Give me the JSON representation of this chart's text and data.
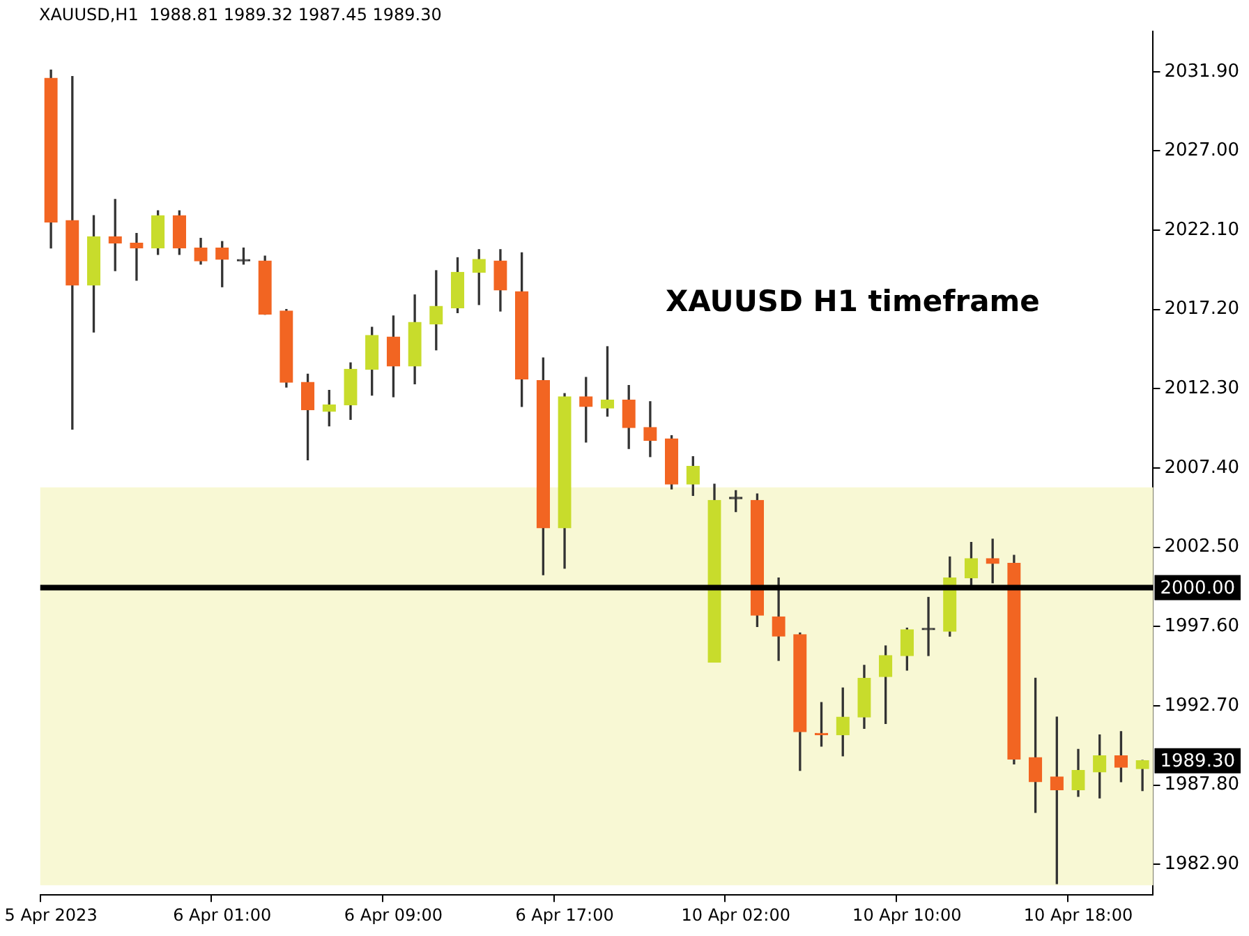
{
  "chart_data": {
    "type": "candlestick",
    "title": "XAUUSD,H1  1988.81 1989.32 1987.45 1989.30",
    "annotations": [
      "XAUUSD H1 timeframe",
      "1989.30"
    ],
    "categories": [
      "5 Apr 2023",
      null,
      null,
      null,
      null,
      null,
      null,
      null,
      "6 Apr 01:00",
      null,
      null,
      null,
      null,
      null,
      null,
      null,
      "6 Apr 09:00",
      null,
      null,
      null,
      null,
      null,
      null,
      null,
      "6 Apr 17:00",
      null,
      null,
      null,
      null,
      null,
      null,
      null,
      "10 Apr 02:00",
      null,
      null,
      null,
      null,
      null,
      null,
      null,
      "10 Apr 10:00",
      null,
      null,
      null,
      null,
      null,
      null,
      null,
      "10 Apr 18:00",
      null,
      null,
      null
    ],
    "ohlc": [
      [
        2031.5,
        2032.0,
        2021.0,
        2022.6
      ],
      [
        2022.7,
        2031.6,
        2009.8,
        2018.7
      ],
      [
        2018.7,
        2023.0,
        2015.8,
        2021.7
      ],
      [
        2021.7,
        2024.0,
        2019.6,
        2021.3
      ],
      [
        2021.3,
        2021.9,
        2019.0,
        2021.0
      ],
      [
        2021.0,
        2023.3,
        2020.6,
        2023.0
      ],
      [
        2023.0,
        2023.3,
        2020.6,
        2021.0
      ],
      [
        2021.0,
        2021.6,
        2020.0,
        2020.2
      ],
      [
        2021.0,
        2021.4,
        2018.6,
        2020.3
      ],
      [
        2020.2,
        2021.0,
        2020.0,
        2020.2
      ],
      [
        2020.2,
        2020.5,
        2016.9,
        2016.9
      ],
      [
        2017.1,
        2017.2,
        2012.4,
        2012.7
      ],
      [
        2012.7,
        2013.2,
        2007.9,
        2011.0
      ],
      [
        2010.9,
        2012.2,
        2010.0,
        2011.3
      ],
      [
        2011.3,
        2013.9,
        2010.4,
        2013.5
      ],
      [
        2013.5,
        2016.1,
        2011.9,
        2015.6
      ],
      [
        2015.5,
        2016.8,
        2011.8,
        2013.7
      ],
      [
        2013.7,
        2018.1,
        2012.6,
        2016.4
      ],
      [
        2016.3,
        2019.6,
        2014.7,
        2017.4
      ],
      [
        2017.3,
        2020.4,
        2017.0,
        2019.5
      ],
      [
        2019.5,
        2020.9,
        2017.5,
        2020.3
      ],
      [
        2020.2,
        2020.9,
        2017.1,
        2018.4
      ],
      [
        2018.3,
        2020.7,
        2011.2,
        2012.9
      ],
      [
        2012.8,
        2014.2,
        2000.8,
        2003.7
      ],
      [
        2003.7,
        2012.0,
        2001.2,
        2011.8
      ],
      [
        2011.8,
        2013.0,
        2009.0,
        2011.2
      ],
      [
        2011.1,
        2014.9,
        2010.6,
        2011.6
      ],
      [
        2011.6,
        2012.5,
        2008.6,
        2009.9
      ],
      [
        2009.9,
        2011.5,
        2008.1,
        2009.1
      ],
      [
        2009.2,
        2009.4,
        2006.1,
        2006.4
      ],
      [
        2006.4,
        2008.1,
        2005.7,
        2007.5
      ],
      [
        1995.4,
        2006.4,
        1995.4,
        2005.4
      ],
      [
        2005.5,
        2006.0,
        2004.7,
        2005.5
      ],
      [
        2005.4,
        2005.8,
        1997.6,
        1998.3
      ],
      [
        1998.2,
        2000.6,
        1995.5,
        1997.0
      ],
      [
        1997.1,
        1997.2,
        1988.7,
        1991.1
      ],
      [
        1991.0,
        1992.9,
        1990.2,
        1990.9
      ],
      [
        1990.9,
        1993.8,
        1989.6,
        1992.0
      ],
      [
        1992.0,
        1995.2,
        1991.3,
        1994.4
      ],
      [
        1994.5,
        1996.4,
        1991.6,
        1995.8
      ],
      [
        1995.8,
        1997.5,
        1994.9,
        1997.4
      ],
      [
        1997.4,
        1999.4,
        1995.8,
        1997.4
      ],
      [
        1997.3,
        2001.9,
        1997.0,
        2000.6
      ],
      [
        2000.6,
        2002.8,
        1999.9,
        2001.8
      ],
      [
        2001.8,
        2003.0,
        2000.3,
        2001.5
      ],
      [
        2001.5,
        2002.0,
        1989.1,
        1989.4
      ],
      [
        1989.5,
        1994.4,
        1986.1,
        1988.0
      ],
      [
        1988.3,
        1992.0,
        1981.7,
        1987.5
      ],
      [
        1987.5,
        1990.0,
        1987.1,
        1988.7
      ],
      [
        1988.6,
        1990.9,
        1987.0,
        1989.6
      ],
      [
        1989.6,
        1991.1,
        1988.0,
        1988.9
      ],
      [
        1988.81,
        1989.32,
        1987.45,
        1989.3
      ]
    ],
    "colors": [
      "#f26522",
      "#f26522",
      "#c8dc2c",
      "#f26522",
      "#f26522",
      "#c8dc2c",
      "#f26522",
      "#f26522",
      "#f26522",
      "#333333",
      "#f26522",
      "#f26522",
      "#f26522",
      "#c8dc2c",
      "#c8dc2c",
      "#c8dc2c",
      "#f26522",
      "#c8dc2c",
      "#c8dc2c",
      "#c8dc2c",
      "#c8dc2c",
      "#f26522",
      "#f26522",
      "#f26522",
      "#c8dc2c",
      "#f26522",
      "#c8dc2c",
      "#f26522",
      "#f26522",
      "#f26522",
      "#c8dc2c",
      "#c8dc2c",
      "#333333",
      "#f26522",
      "#f26522",
      "#f26522",
      "#f26522",
      "#c8dc2c",
      "#c8dc2c",
      "#c8dc2c",
      "#c8dc2c",
      "#333333",
      "#c8dc2c",
      "#c8dc2c",
      "#f26522",
      "#f26522",
      "#f26522",
      "#f26522",
      "#c8dc2c",
      "#c8dc2c",
      "#f26522",
      "#c8dc2c"
    ],
    "ylim": [
      1981.0,
      2034.4
    ],
    "yticks": [
      {
        "value": 2031.9,
        "label": "2031.90"
      },
      {
        "value": 2027,
        "label": "2027.00"
      },
      {
        "value": 2022.1,
        "label": "2022.10"
      },
      {
        "value": 2017.2,
        "label": "2017.20"
      },
      {
        "value": 2012.3,
        "label": "2012.30"
      },
      {
        "value": 2007.4,
        "label": "2007.40"
      },
      {
        "value": 2002.5,
        "label": "2002.50"
      },
      {
        "value": 1997.6,
        "label": "1997.60"
      },
      {
        "value": 1992.7,
        "label": "1992.70"
      },
      {
        "value": 1987.8,
        "label": "1987.80"
      },
      {
        "value": 1982.9,
        "label": "1982.90"
      }
    ],
    "ref_lines": [
      {
        "axis": "y",
        "value": 2000,
        "label": "2000.00",
        "color": "#000000"
      }
    ],
    "bands": [
      {
        "axis": "y",
        "from": 1981.6,
        "to": 2006.2,
        "color": "#f8f8d4"
      }
    ],
    "grid": false,
    "legend": false
  }
}
